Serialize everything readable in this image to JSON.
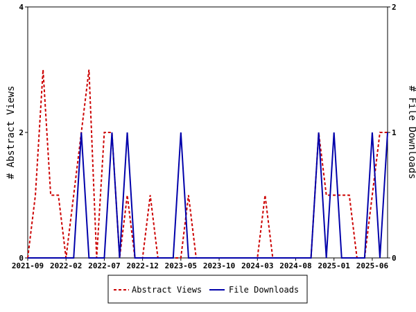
{
  "chart_data": {
    "type": "line",
    "x_ticks": [
      "2021-09",
      "2022-02",
      "2022-07",
      "2022-12",
      "2023-05",
      "2023-10",
      "2024-03",
      "2024-08",
      "2025-01",
      "2025-06"
    ],
    "left_axis": {
      "label": "# Abstract Views",
      "ylim": [
        0,
        4
      ],
      "ticks": [
        "0",
        "2",
        "4"
      ]
    },
    "right_axis": {
      "label": "# File Downloads",
      "ylim": [
        0,
        2
      ],
      "ticks": [
        "0",
        "1",
        "2"
      ]
    },
    "grid": false,
    "legend_position": "bottom",
    "series": [
      {
        "name": "Abstract Views",
        "axis": "left",
        "color": "#cc0000",
        "style": "dashed",
        "points": [
          [
            0,
            0
          ],
          [
            1,
            1
          ],
          [
            2,
            3
          ],
          [
            3,
            1
          ],
          [
            4,
            1
          ],
          [
            5,
            0
          ],
          [
            6,
            1
          ],
          [
            7,
            2
          ],
          [
            8,
            3
          ],
          [
            9,
            0
          ],
          [
            10,
            2
          ],
          [
            11,
            2
          ],
          [
            12,
            0
          ],
          [
            13,
            1
          ],
          [
            14,
            0
          ],
          [
            15,
            0
          ],
          [
            16,
            1
          ],
          [
            17,
            0
          ],
          [
            18,
            0
          ],
          [
            19,
            0
          ],
          [
            20,
            0
          ],
          [
            21,
            1
          ],
          [
            22,
            0
          ],
          [
            23,
            0
          ],
          [
            24,
            0
          ],
          [
            25,
            0
          ],
          [
            26,
            0
          ],
          [
            27,
            0
          ],
          [
            28,
            0
          ],
          [
            29,
            0
          ],
          [
            30,
            0
          ],
          [
            31,
            1
          ],
          [
            32,
            0
          ],
          [
            33,
            0
          ],
          [
            34,
            0
          ],
          [
            35,
            0
          ],
          [
            36,
            0
          ],
          [
            37,
            0
          ],
          [
            38,
            2
          ],
          [
            39,
            1
          ],
          [
            40,
            1
          ],
          [
            41,
            1
          ],
          [
            42,
            1
          ],
          [
            43,
            0
          ],
          [
            44,
            0
          ],
          [
            45,
            1
          ],
          [
            46,
            2
          ],
          [
            47,
            2
          ]
        ]
      },
      {
        "name": "File Downloads",
        "axis": "right",
        "color": "#0000aa",
        "style": "solid",
        "points": [
          [
            0,
            0
          ],
          [
            1,
            0
          ],
          [
            2,
            0
          ],
          [
            3,
            0
          ],
          [
            4,
            0
          ],
          [
            5,
            0
          ],
          [
            6,
            0
          ],
          [
            7,
            1
          ],
          [
            8,
            0
          ],
          [
            9,
            0
          ],
          [
            10,
            0
          ],
          [
            11,
            1
          ],
          [
            12,
            0
          ],
          [
            13,
            1
          ],
          [
            14,
            0
          ],
          [
            15,
            0
          ],
          [
            16,
            0
          ],
          [
            17,
            0
          ],
          [
            18,
            0
          ],
          [
            19,
            0
          ],
          [
            20,
            1
          ],
          [
            21,
            0
          ],
          [
            22,
            0
          ],
          [
            23,
            0
          ],
          [
            24,
            0
          ],
          [
            25,
            0
          ],
          [
            26,
            0
          ],
          [
            27,
            0
          ],
          [
            28,
            0
          ],
          [
            29,
            0
          ],
          [
            30,
            0
          ],
          [
            31,
            0
          ],
          [
            32,
            0
          ],
          [
            33,
            0
          ],
          [
            34,
            0
          ],
          [
            35,
            0
          ],
          [
            36,
            0
          ],
          [
            37,
            0
          ],
          [
            38,
            1
          ],
          [
            39,
            0
          ],
          [
            40,
            1
          ],
          [
            41,
            0
          ],
          [
            42,
            0
          ],
          [
            43,
            0
          ],
          [
            44,
            0
          ],
          [
            45,
            1
          ],
          [
            46,
            0
          ],
          [
            47,
            1
          ]
        ]
      }
    ]
  }
}
